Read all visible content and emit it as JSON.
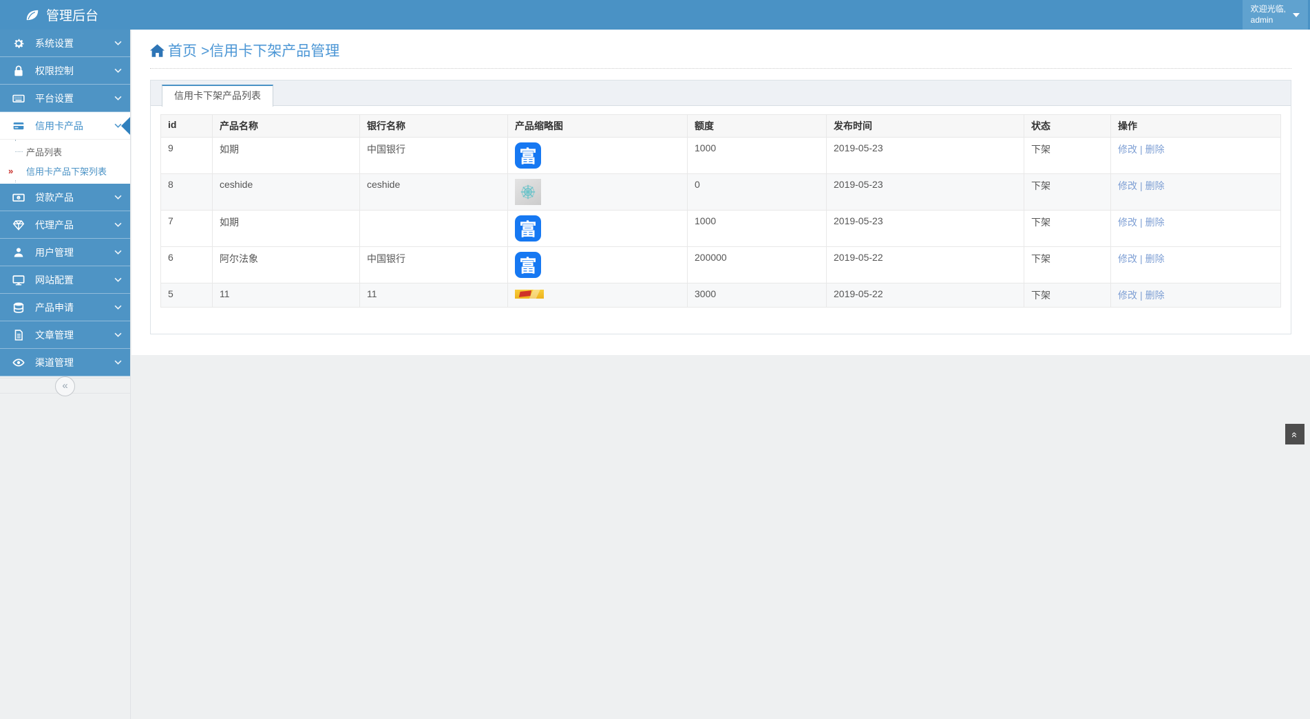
{
  "app": {
    "title": "管理后台"
  },
  "user": {
    "welcome": "欢迎光临,",
    "name": "admin"
  },
  "sidebar": {
    "items": [
      {
        "id": "system-settings",
        "icon": "gear-icon",
        "label": "系统设置"
      },
      {
        "id": "permission-control",
        "icon": "lock-icon",
        "label": "权限控制"
      },
      {
        "id": "platform-settings",
        "icon": "keyboard-icon",
        "label": "平台设置"
      },
      {
        "id": "credit-card-products",
        "icon": "credit-card-icon",
        "label": "信用卡产品",
        "active": true,
        "expanded": true,
        "children": [
          {
            "id": "product-list",
            "label": "产品列表",
            "active": false,
            "marker": ""
          },
          {
            "id": "credit-card-offline-list",
            "label": "信用卡产品下架列表",
            "active": true,
            "marker": "»"
          }
        ]
      },
      {
        "id": "loan-products",
        "icon": "banknote-icon",
        "label": "贷款产品"
      },
      {
        "id": "agent-products",
        "icon": "diamond-icon",
        "label": "代理产品"
      },
      {
        "id": "user-management",
        "icon": "user-icon",
        "label": "用户管理"
      },
      {
        "id": "site-config",
        "icon": "monitor-icon",
        "label": "网站配置"
      },
      {
        "id": "product-apply",
        "icon": "database-icon",
        "label": "产品申请"
      },
      {
        "id": "article-management",
        "icon": "document-icon",
        "label": "文章管理"
      },
      {
        "id": "channel-management",
        "icon": "eye-icon",
        "label": "渠道管理"
      }
    ],
    "collapse_glyph": "«"
  },
  "breadcrumb": {
    "home_label": "首页",
    "rest": ">信用卡下架产品管理"
  },
  "panel": {
    "tab_label": "信用卡下架产品列表"
  },
  "table": {
    "columns": [
      "id",
      "产品名称",
      "银行名称",
      "产品缩略图",
      "额度",
      "发布时间",
      "状态",
      "操作"
    ],
    "actions": {
      "edit": "修改",
      "separator": "|",
      "delete": "删除"
    },
    "thumbnails": {
      "fu-blue": {
        "kind": "char-badge",
        "char": "富",
        "bg": "#1678f2"
      },
      "gray-wheel": {
        "kind": "gray-logo"
      },
      "gold-banner": {
        "kind": "banner"
      }
    },
    "rows": [
      {
        "id": "9",
        "name": "如期",
        "bank": "中国银行",
        "thumb": "fu-blue",
        "quota": "1000",
        "date": "2019-05-23",
        "status": "下架"
      },
      {
        "id": "8",
        "name": "ceshide",
        "bank": "ceshide",
        "thumb": "gray-wheel",
        "quota": "0",
        "date": "2019-05-23",
        "status": "下架"
      },
      {
        "id": "7",
        "name": "如期",
        "bank": "",
        "thumb": "fu-blue",
        "quota": "1000",
        "date": "2019-05-23",
        "status": "下架"
      },
      {
        "id": "6",
        "name": "阿尔法象",
        "bank": "中国银行",
        "thumb": "fu-blue",
        "quota": "200000",
        "date": "2019-05-22",
        "status": "下架"
      },
      {
        "id": "5",
        "name": "11",
        "bank": "11",
        "thumb": "gold-banner",
        "quota": "3000",
        "date": "2019-05-22",
        "status": "下架"
      }
    ]
  },
  "misc": {
    "back_to_top_glyph": "«"
  },
  "colors": {
    "header_bg": "#4a92c5",
    "user_box_bg": "#60a2cf",
    "sidebar_item_bg": "#4e94c5",
    "active_text_blue": "#3f8ec8",
    "breadcrumb_blue": "#4b96d5",
    "link_blue": "#7e9fd4",
    "active_marker_red": "#c9302c",
    "fu_badge_blue": "#1678f2",
    "wedge_blue": "#2f80be",
    "back_top_bg": "#4d4d4d"
  }
}
